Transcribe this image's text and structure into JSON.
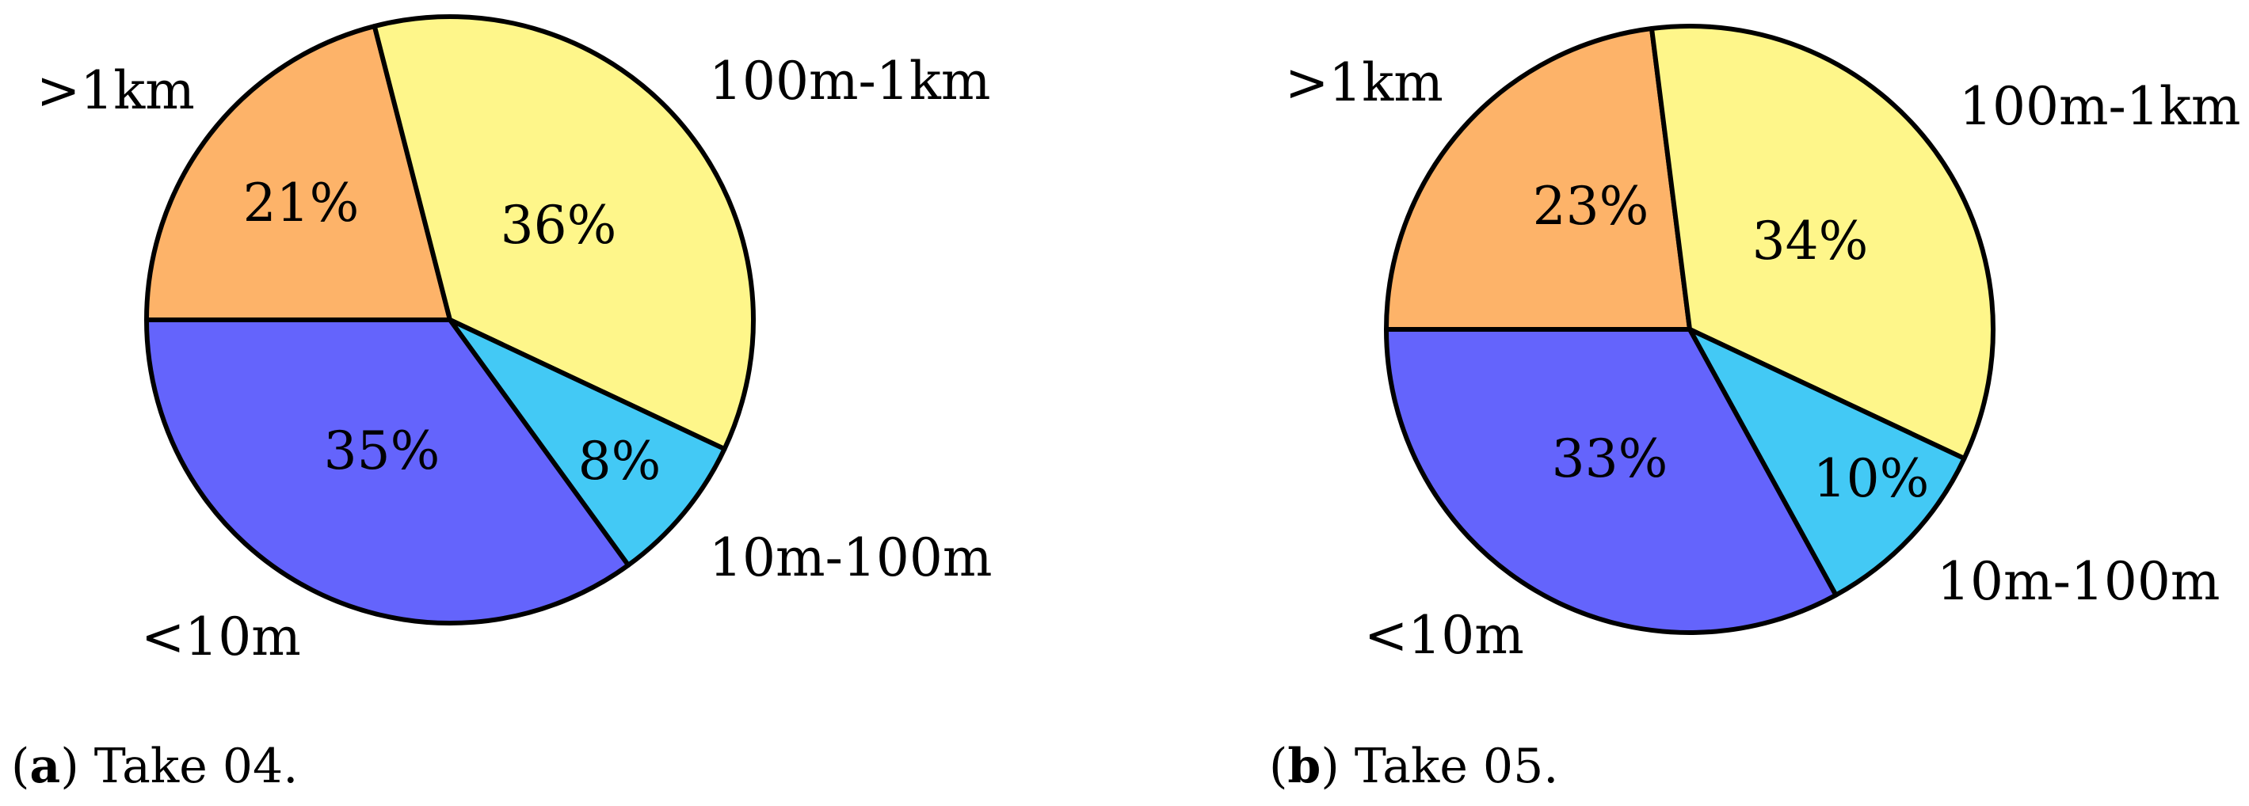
{
  "chart_data": [
    {
      "type": "pie",
      "caption_letter": "a",
      "caption_text": "Take 04.",
      "slices": [
        {
          "label": ">1km",
          "value": 21,
          "value_label": "21%",
          "color": "#FDB369"
        },
        {
          "label": "100m-1km",
          "value": 36,
          "value_label": "36%",
          "color": "#FEF68A"
        },
        {
          "label": "10m-100m",
          "value": 8,
          "value_label": "8%",
          "color": "#43C9F5"
        },
        {
          "label": "<10m",
          "value": 35,
          "value_label": "35%",
          "color": "#6464FC"
        }
      ]
    },
    {
      "type": "pie",
      "caption_letter": "b",
      "caption_text": "Take 05.",
      "slices": [
        {
          "label": ">1km",
          "value": 23,
          "value_label": "23%",
          "color": "#FDB369"
        },
        {
          "label": "100m-1km",
          "value": 34,
          "value_label": "34%",
          "color": "#FEF68A"
        },
        {
          "label": "10m-100m",
          "value": 10,
          "value_label": "10%",
          "color": "#43C9F5"
        },
        {
          "label": "<10m",
          "value": 33,
          "value_label": "33%",
          "color": "#6464FC"
        }
      ]
    }
  ],
  "style": {
    "outline_color": "#000000"
  }
}
